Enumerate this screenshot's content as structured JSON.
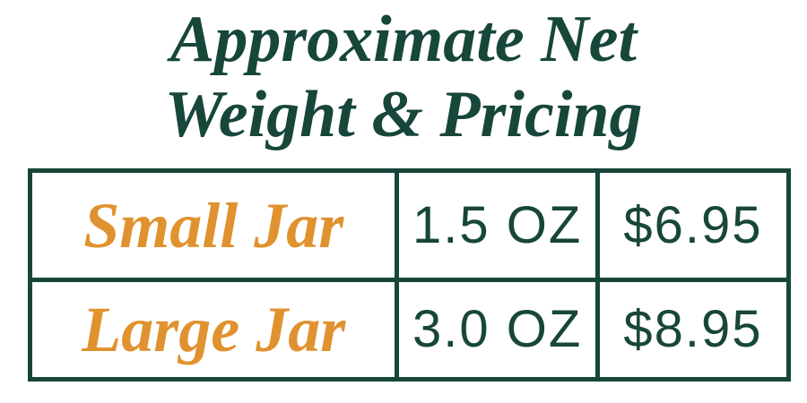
{
  "title": {
    "line1": "Approximate Net",
    "line2": "Weight & Pricing"
  },
  "table": {
    "rows": [
      {
        "name": "Small Jar",
        "weight": "1.5 OZ",
        "price": "$6.95"
      },
      {
        "name": "Large Jar",
        "weight": "3.0 OZ",
        "price": "$8.95"
      }
    ]
  },
  "colors": {
    "green": "#17463A",
    "orange": "#E0922F",
    "background": "#FFFFFF"
  }
}
